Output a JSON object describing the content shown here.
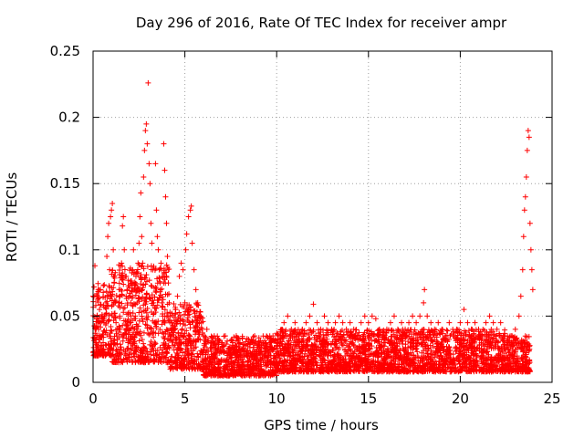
{
  "chart_data": {
    "type": "scatter",
    "title": "Day 296 of 2016, Rate Of TEC Index for receiver ampr",
    "xlabel": "GPS time / hours",
    "ylabel": "ROTI / TECUs",
    "xlim": [
      0,
      25
    ],
    "ylim": [
      0,
      0.25
    ],
    "xticks": [
      0,
      5,
      10,
      15,
      20,
      25
    ],
    "xtick_labels": [
      "0",
      "5",
      "10",
      "15",
      "20",
      "25"
    ],
    "yticks": [
      0,
      0.05,
      0.1,
      0.15,
      0.2,
      0.25
    ],
    "ytick_labels": [
      "0",
      "0.05",
      "0.1",
      "0.15",
      "0.2",
      "0.25"
    ],
    "grid": true,
    "marker": "+",
    "color": "#ff0000",
    "series": [
      {
        "name": "ROTI",
        "points": [
          [
            0.0,
            0.065
          ],
          [
            0.05,
            0.072
          ],
          [
            0.1,
            0.088
          ],
          [
            0.15,
            0.058
          ],
          [
            0.2,
            0.048
          ],
          [
            0.25,
            0.062
          ],
          [
            0.3,
            0.04
          ],
          [
            0.35,
            0.055
          ],
          [
            0.4,
            0.07
          ],
          [
            0.45,
            0.035
          ],
          [
            0.5,
            0.05
          ],
          [
            0.55,
            0.03
          ],
          [
            0.6,
            0.045
          ],
          [
            0.7,
            0.06
          ],
          [
            0.75,
            0.095
          ],
          [
            0.8,
            0.11
          ],
          [
            0.85,
            0.12
          ],
          [
            0.9,
            0.085
          ],
          [
            0.95,
            0.125
          ],
          [
            1.0,
            0.13
          ],
          [
            1.05,
            0.135
          ],
          [
            1.1,
            0.1
          ],
          [
            1.15,
            0.075
          ],
          [
            1.2,
            0.06
          ],
          [
            1.25,
            0.045
          ],
          [
            1.3,
            0.035
          ],
          [
            1.35,
            0.025
          ],
          [
            1.4,
            0.015
          ],
          [
            1.45,
            0.05
          ],
          [
            1.5,
            0.07
          ],
          [
            1.55,
            0.09
          ],
          [
            1.6,
            0.118
          ],
          [
            1.65,
            0.125
          ],
          [
            1.7,
            0.1
          ],
          [
            1.75,
            0.08
          ],
          [
            1.8,
            0.065
          ],
          [
            1.85,
            0.04
          ],
          [
            1.9,
            0.03
          ],
          [
            2.0,
            0.045
          ],
          [
            2.05,
            0.06
          ],
          [
            2.1,
            0.075
          ],
          [
            2.15,
            0.085
          ],
          [
            2.2,
            0.1
          ],
          [
            2.25,
            0.07
          ],
          [
            2.3,
            0.05
          ],
          [
            2.35,
            0.04
          ],
          [
            2.4,
            0.06
          ],
          [
            2.45,
            0.09
          ],
          [
            2.5,
            0.105
          ],
          [
            2.55,
            0.125
          ],
          [
            2.6,
            0.143
          ],
          [
            2.65,
            0.11
          ],
          [
            2.7,
            0.09
          ],
          [
            2.75,
            0.155
          ],
          [
            2.8,
            0.175
          ],
          [
            2.85,
            0.19
          ],
          [
            2.9,
            0.195
          ],
          [
            2.95,
            0.18
          ],
          [
            3.0,
            0.226
          ],
          [
            3.05,
            0.165
          ],
          [
            3.1,
            0.15
          ],
          [
            3.15,
            0.12
          ],
          [
            3.2,
            0.105
          ],
          [
            3.25,
            0.085
          ],
          [
            3.3,
            0.06
          ],
          [
            3.35,
            0.045
          ],
          [
            3.4,
            0.165
          ],
          [
            3.45,
            0.13
          ],
          [
            3.5,
            0.11
          ],
          [
            3.55,
            0.1
          ],
          [
            3.6,
            0.085
          ],
          [
            3.65,
            0.075
          ],
          [
            3.7,
            0.09
          ],
          [
            3.75,
            0.06
          ],
          [
            3.8,
            0.05
          ],
          [
            3.85,
            0.18
          ],
          [
            3.9,
            0.16
          ],
          [
            3.95,
            0.14
          ],
          [
            4.0,
            0.12
          ],
          [
            4.05,
            0.095
          ],
          [
            4.1,
            0.075
          ],
          [
            4.15,
            0.06
          ],
          [
            4.2,
            0.05
          ],
          [
            4.3,
            0.045
          ],
          [
            4.4,
            0.04
          ],
          [
            4.5,
            0.055
          ],
          [
            4.6,
            0.065
          ],
          [
            4.7,
            0.08
          ],
          [
            4.8,
            0.09
          ],
          [
            4.9,
            0.085
          ],
          [
            5.0,
            0.06
          ],
          [
            5.05,
            0.1
          ],
          [
            5.1,
            0.112
          ],
          [
            5.2,
            0.125
          ],
          [
            5.3,
            0.13
          ],
          [
            5.35,
            0.133
          ],
          [
            5.4,
            0.105
          ],
          [
            5.5,
            0.085
          ],
          [
            5.6,
            0.07
          ],
          [
            5.7,
            0.06
          ],
          [
            5.8,
            0.05
          ],
          [
            5.9,
            0.045
          ],
          [
            6.0,
            0.035
          ],
          [
            6.2,
            0.04
          ],
          [
            6.4,
            0.03
          ],
          [
            6.6,
            0.035
          ],
          [
            6.8,
            0.025
          ],
          [
            7.0,
            0.03
          ],
          [
            7.2,
            0.035
          ],
          [
            7.4,
            0.025
          ],
          [
            7.6,
            0.03
          ],
          [
            7.8,
            0.035
          ],
          [
            8.0,
            0.03
          ],
          [
            8.2,
            0.025
          ],
          [
            8.4,
            0.02
          ],
          [
            8.6,
            0.03
          ],
          [
            8.8,
            0.035
          ],
          [
            9.0,
            0.028
          ],
          [
            9.2,
            0.03
          ],
          [
            9.4,
            0.025
          ],
          [
            9.6,
            0.03
          ],
          [
            9.8,
            0.035
          ],
          [
            10.0,
            0.03
          ],
          [
            10.2,
            0.035
          ],
          [
            10.4,
            0.045
          ],
          [
            10.6,
            0.05
          ],
          [
            10.8,
            0.04
          ],
          [
            11.0,
            0.045
          ],
          [
            11.2,
            0.035
          ],
          [
            11.4,
            0.04
          ],
          [
            11.6,
            0.045
          ],
          [
            11.8,
            0.05
          ],
          [
            12.0,
            0.059
          ],
          [
            12.2,
            0.045
          ],
          [
            12.4,
            0.04
          ],
          [
            12.6,
            0.05
          ],
          [
            12.8,
            0.045
          ],
          [
            13.0,
            0.04
          ],
          [
            13.2,
            0.045
          ],
          [
            13.4,
            0.05
          ],
          [
            13.6,
            0.045
          ],
          [
            13.8,
            0.04
          ],
          [
            14.0,
            0.045
          ],
          [
            14.2,
            0.04
          ],
          [
            14.4,
            0.035
          ],
          [
            14.6,
            0.045
          ],
          [
            14.8,
            0.05
          ],
          [
            15.0,
            0.045
          ],
          [
            15.2,
            0.05
          ],
          [
            15.4,
            0.048
          ],
          [
            15.6,
            0.04
          ],
          [
            15.8,
            0.035
          ],
          [
            16.0,
            0.04
          ],
          [
            16.2,
            0.045
          ],
          [
            16.4,
            0.05
          ],
          [
            16.6,
            0.04
          ],
          [
            16.8,
            0.045
          ],
          [
            17.0,
            0.04
          ],
          [
            17.2,
            0.045
          ],
          [
            17.4,
            0.05
          ],
          [
            17.6,
            0.045
          ],
          [
            17.8,
            0.05
          ],
          [
            18.0,
            0.06
          ],
          [
            18.05,
            0.07
          ],
          [
            18.2,
            0.05
          ],
          [
            18.4,
            0.045
          ],
          [
            18.6,
            0.04
          ],
          [
            18.8,
            0.045
          ],
          [
            19.0,
            0.04
          ],
          [
            19.2,
            0.035
          ],
          [
            19.4,
            0.045
          ],
          [
            19.6,
            0.035
          ],
          [
            19.8,
            0.04
          ],
          [
            20.0,
            0.045
          ],
          [
            20.2,
            0.055
          ],
          [
            20.4,
            0.045
          ],
          [
            20.6,
            0.04
          ],
          [
            20.8,
            0.045
          ],
          [
            21.0,
            0.04
          ],
          [
            21.2,
            0.035
          ],
          [
            21.4,
            0.045
          ],
          [
            21.6,
            0.05
          ],
          [
            21.8,
            0.045
          ],
          [
            22.0,
            0.04
          ],
          [
            22.2,
            0.045
          ],
          [
            22.4,
            0.035
          ],
          [
            22.6,
            0.03
          ],
          [
            22.8,
            0.035
          ],
          [
            23.0,
            0.04
          ],
          [
            23.2,
            0.05
          ],
          [
            23.3,
            0.065
          ],
          [
            23.4,
            0.085
          ],
          [
            23.45,
            0.11
          ],
          [
            23.5,
            0.13
          ],
          [
            23.55,
            0.14
          ],
          [
            23.6,
            0.155
          ],
          [
            23.65,
            0.175
          ],
          [
            23.7,
            0.19
          ],
          [
            23.75,
            0.185
          ],
          [
            23.8,
            0.12
          ],
          [
            23.85,
            0.1
          ],
          [
            23.9,
            0.085
          ],
          [
            23.95,
            0.07
          ]
        ]
      }
    ],
    "background_band": {
      "description": "dense cluster of ROTI values near baseline",
      "segments": [
        {
          "x": [
            0.0,
            1.0
          ],
          "y": [
            0.02,
            0.075
          ]
        },
        {
          "x": [
            1.0,
            4.2
          ],
          "y": [
            0.015,
            0.09
          ]
        },
        {
          "x": [
            4.2,
            6.0
          ],
          "y": [
            0.01,
            0.06
          ]
        },
        {
          "x": [
            6.0,
            10.0
          ],
          "y": [
            0.005,
            0.035
          ]
        },
        {
          "x": [
            10.0,
            22.5
          ],
          "y": [
            0.008,
            0.04
          ]
        },
        {
          "x": [
            22.5,
            23.8
          ],
          "y": [
            0.008,
            0.035
          ]
        }
      ]
    }
  }
}
